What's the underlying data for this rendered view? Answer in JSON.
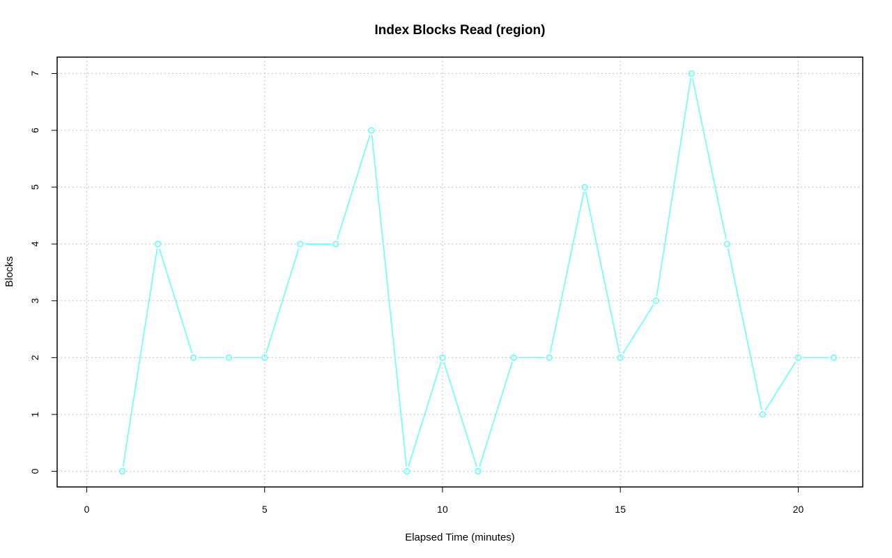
{
  "chart_data": {
    "type": "line",
    "title": "Index Blocks Read (region)",
    "xlabel": "Elapsed Time (minutes)",
    "ylabel": "Blocks",
    "xlim": [
      0,
      21
    ],
    "ylim": [
      0,
      7
    ],
    "x_ticks": [
      "0",
      "5",
      "10",
      "15",
      "20"
    ],
    "y_ticks": [
      "0",
      "1",
      "2",
      "3",
      "4",
      "5",
      "6",
      "7"
    ],
    "grid": true,
    "series": [
      {
        "color": "#66ffff",
        "marker": "open-circle",
        "x": [
          1,
          2,
          3,
          4,
          5,
          6,
          7,
          8,
          9,
          10,
          11,
          12,
          13,
          14,
          15,
          16,
          17,
          18,
          19,
          20,
          21
        ],
        "y": [
          0,
          4,
          2,
          2,
          2,
          4,
          4,
          6,
          0,
          2,
          0,
          2,
          2,
          5,
          2,
          3,
          7,
          4,
          1,
          2,
          2
        ]
      }
    ]
  }
}
